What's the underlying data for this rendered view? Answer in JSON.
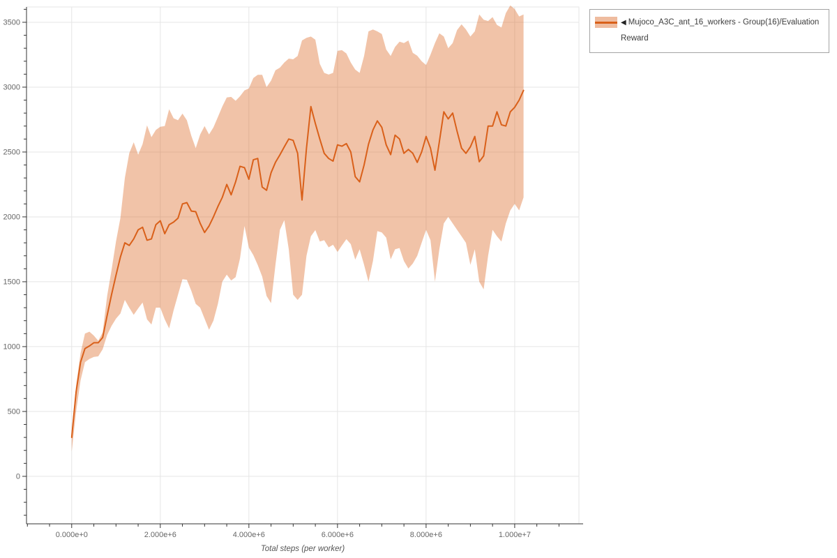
{
  "legend": {
    "marker_glyph": "◀",
    "label": "Mujoco_A3C_ant_16_workers - Group(16)/Evaluation Reward"
  },
  "chart_data": {
    "type": "line",
    "title": "",
    "xlabel": "Total steps (per worker)",
    "ylabel": "",
    "legend_position": "top-right-outside",
    "grid": true,
    "x_start_e6": 0.0,
    "x_step_e6": 0.1,
    "xlim_e6": [
      -1.02,
      11.45
    ],
    "ylim": [
      -366,
      3618
    ],
    "x_ticks": [
      {
        "value_e6": 0,
        "label": "0.000e+0"
      },
      {
        "value_e6": 2,
        "label": "2.000e+6"
      },
      {
        "value_e6": 4,
        "label": "4.000e+6"
      },
      {
        "value_e6": 6,
        "label": "6.000e+6"
      },
      {
        "value_e6": 8,
        "label": "8.000e+6"
      },
      {
        "value_e6": 10,
        "label": "1.000e+7"
      }
    ],
    "x_minor_step_e6": 0.5,
    "y_ticks": [
      {
        "value": 0,
        "label": "0"
      },
      {
        "value": 500,
        "label": "500"
      },
      {
        "value": 1000,
        "label": "1000"
      },
      {
        "value": 1500,
        "label": "1500"
      },
      {
        "value": 2000,
        "label": "2000"
      },
      {
        "value": 2500,
        "label": "2500"
      },
      {
        "value": 3000,
        "label": "3000"
      },
      {
        "value": 3500,
        "label": "3500"
      }
    ],
    "y_minor_step": 100,
    "colors": {
      "line": "#d9601a",
      "band": "#d9601a",
      "band_opacity": 0.38,
      "grid": "#e5e5e5",
      "outline": "#e5e5e5",
      "axis": "#333333",
      "tick_label": "#666666"
    },
    "series": [
      {
        "name": "Mujoco_A3C_ant_16_workers - Group(16)/Evaluation Reward",
        "mean": [
          300,
          650,
          880,
          985,
          1005,
          1030,
          1030,
          1070,
          1240,
          1400,
          1550,
          1690,
          1800,
          1780,
          1830,
          1900,
          1920,
          1820,
          1830,
          1940,
          1970,
          1870,
          1940,
          1960,
          1990,
          2100,
          2110,
          2045,
          2040,
          1950,
          1880,
          1930,
          2000,
          2080,
          2150,
          2250,
          2170,
          2270,
          2390,
          2380,
          2290,
          2440,
          2450,
          2230,
          2205,
          2340,
          2420,
          2478,
          2540,
          2600,
          2590,
          2490,
          2130,
          2530,
          2850,
          2720,
          2600,
          2490,
          2450,
          2430,
          2555,
          2545,
          2565,
          2500,
          2310,
          2270,
          2400,
          2560,
          2670,
          2740,
          2690,
          2555,
          2480,
          2630,
          2600,
          2490,
          2520,
          2490,
          2420,
          2500,
          2620,
          2530,
          2360,
          2580,
          2810,
          2755,
          2800,
          2660,
          2530,
          2490,
          2540,
          2620,
          2425,
          2470,
          2700,
          2700,
          2810,
          2710,
          2700,
          2810,
          2845,
          2900,
          2975
        ],
        "lower": [
          190,
          500,
          740,
          880,
          905,
          920,
          925,
          980,
          1090,
          1160,
          1215,
          1255,
          1360,
          1300,
          1245,
          1295,
          1340,
          1210,
          1170,
          1300,
          1300,
          1210,
          1140,
          1280,
          1400,
          1520,
          1515,
          1430,
          1330,
          1300,
          1215,
          1130,
          1200,
          1330,
          1500,
          1555,
          1510,
          1535,
          1680,
          1930,
          1763,
          1705,
          1629,
          1540,
          1390,
          1335,
          1629,
          1900,
          1975,
          1750,
          1400,
          1360,
          1400,
          1700,
          1850,
          1898,
          1810,
          1820,
          1765,
          1785,
          1730,
          1780,
          1828,
          1790,
          1670,
          1750,
          1630,
          1500,
          1660,
          1890,
          1880,
          1840,
          1672,
          1750,
          1760,
          1660,
          1602,
          1640,
          1700,
          1800,
          1900,
          1820,
          1500,
          1750,
          1950,
          2000,
          1950,
          1900,
          1850,
          1800,
          1630,
          1750,
          1500,
          1441,
          1700,
          1900,
          1850,
          1810,
          1950,
          2050,
          2100,
          2050,
          2150
        ],
        "upper": [
          350,
          700,
          950,
          1100,
          1115,
          1085,
          1045,
          1110,
          1390,
          1590,
          1810,
          1990,
          2300,
          2490,
          2575,
          2480,
          2560,
          2705,
          2615,
          2670,
          2695,
          2700,
          2830,
          2760,
          2745,
          2796,
          2745,
          2625,
          2530,
          2635,
          2700,
          2635,
          2690,
          2770,
          2850,
          2920,
          2925,
          2895,
          2930,
          2975,
          2990,
          3070,
          3095,
          3095,
          3000,
          3050,
          3130,
          3150,
          3190,
          3220,
          3215,
          3240,
          3360,
          3380,
          3390,
          3366,
          3180,
          3110,
          3097,
          3110,
          3280,
          3285,
          3260,
          3190,
          3135,
          3110,
          3240,
          3430,
          3445,
          3430,
          3410,
          3290,
          3240,
          3310,
          3350,
          3340,
          3360,
          3265,
          3242,
          3200,
          3170,
          3250,
          3340,
          3415,
          3390,
          3300,
          3340,
          3440,
          3484,
          3445,
          3390,
          3430,
          3560,
          3520,
          3510,
          3540,
          3480,
          3460,
          3570,
          3630,
          3602,
          3545,
          3560
        ]
      }
    ]
  }
}
